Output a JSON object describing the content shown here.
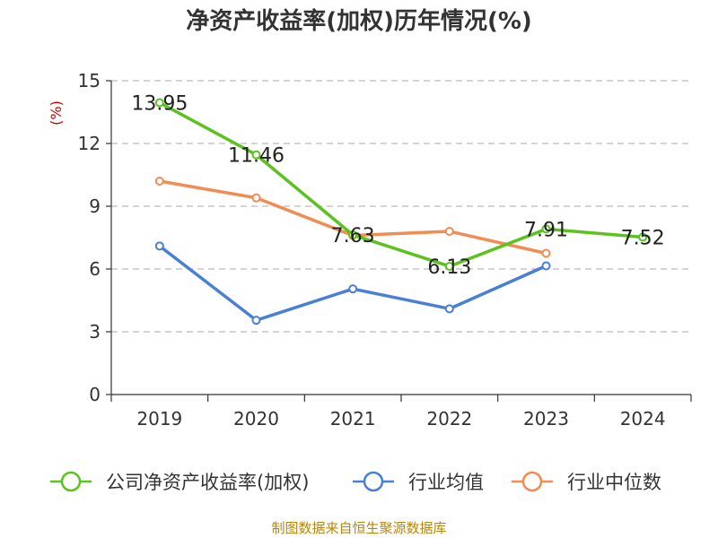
{
  "title": "净资产收益率(加权)历年情况(%)",
  "source": "制图数据来自恒生聚源数据库",
  "chart_data": {
    "type": "line",
    "title": "净资产收益率(加权)历年情况(%)",
    "ylabel": "(%)",
    "xlabel": "",
    "categories": [
      "2019",
      "2020",
      "2021",
      "2022",
      "2023",
      "2024"
    ],
    "ylim": [
      0,
      15
    ],
    "yticks": [
      0,
      3,
      6,
      9,
      12,
      15
    ],
    "grid": true,
    "legend_position": "bottom",
    "series": [
      {
        "name": "公司净资产收益率(加权)",
        "color": "#5bc21f",
        "values": [
          13.95,
          11.46,
          7.63,
          6.13,
          7.91,
          7.52
        ],
        "labels": [
          "13.95",
          "11.46",
          "7.63",
          "6.13",
          "7.91",
          "7.52"
        ]
      },
      {
        "name": "行业均值",
        "color": "#4a7fd6",
        "values": [
          7.1,
          3.55,
          5.05,
          4.1,
          6.15,
          null
        ]
      },
      {
        "name": "行业中位数",
        "color": "#f28c52",
        "values": [
          10.2,
          9.4,
          7.6,
          7.8,
          6.75,
          null
        ]
      }
    ]
  }
}
